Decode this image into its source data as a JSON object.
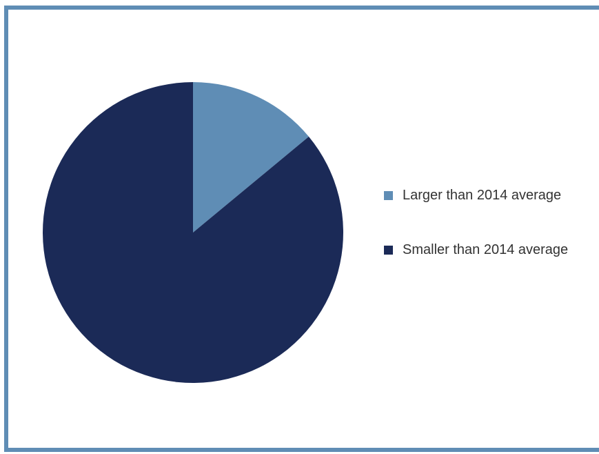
{
  "chart_data": {
    "type": "pie",
    "title": "",
    "slices": [
      {
        "label": "Larger than 2014 average",
        "value": 14,
        "color": "#5f8db5"
      },
      {
        "label": "Smaller than 2014 average",
        "value": 86,
        "color": "#1b2a57"
      }
    ],
    "start_angle": "12 o'clock",
    "direction": "clockwise",
    "legend_position": "right"
  },
  "frame_color": "#5f8db5"
}
